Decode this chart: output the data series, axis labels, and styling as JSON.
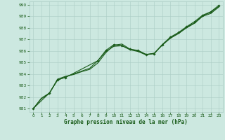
{
  "xlabel": "Graphe pression niveau de la mer (hPa)",
  "xlim": [
    -0.5,
    23.5
  ],
  "ylim": [
    980.7,
    990.3
  ],
  "yticks": [
    981,
    982,
    983,
    984,
    985,
    986,
    987,
    988,
    989,
    990
  ],
  "xticks": [
    0,
    1,
    2,
    3,
    4,
    5,
    6,
    7,
    8,
    9,
    10,
    11,
    12,
    13,
    14,
    15,
    16,
    17,
    18,
    19,
    20,
    21,
    22,
    23
  ],
  "background_color": "#cce8e0",
  "grid_color": "#aaccc4",
  "line_color": "#1a5c1a",
  "line1_x": [
    0,
    1,
    2,
    3,
    4,
    5,
    6,
    7,
    8,
    9,
    10,
    11,
    12,
    13,
    14,
    15,
    16,
    17,
    18,
    19,
    20,
    21,
    22,
    23
  ],
  "line1": [
    981.0,
    981.9,
    982.35,
    983.45,
    983.75,
    984.0,
    984.25,
    984.5,
    985.15,
    985.95,
    986.4,
    986.45,
    986.1,
    985.95,
    985.65,
    985.8,
    986.5,
    987.1,
    987.5,
    988.0,
    988.4,
    989.0,
    989.25,
    989.8
  ],
  "line2_x": [
    0,
    1,
    2,
    3,
    4,
    5,
    6,
    7,
    8,
    9,
    10,
    11,
    12,
    13,
    14,
    15,
    16,
    17,
    18,
    19,
    20,
    21,
    22,
    23
  ],
  "line2": [
    981.0,
    981.85,
    982.3,
    983.55,
    983.8,
    983.95,
    984.2,
    984.4,
    984.95,
    985.85,
    986.5,
    986.6,
    986.15,
    986.0,
    985.7,
    985.8,
    986.55,
    987.15,
    987.55,
    988.05,
    988.45,
    989.05,
    989.35,
    989.85
  ],
  "line3_x": [
    0,
    2,
    3,
    4,
    8,
    9,
    10,
    11,
    12,
    13,
    14,
    15,
    16,
    17,
    18,
    19,
    20,
    21,
    22,
    23
  ],
  "line3": [
    981.0,
    982.35,
    983.5,
    983.7,
    985.15,
    986.05,
    986.55,
    986.45,
    986.15,
    986.05,
    985.7,
    985.75,
    986.55,
    987.2,
    987.6,
    988.1,
    988.55,
    989.1,
    989.4,
    989.95
  ]
}
